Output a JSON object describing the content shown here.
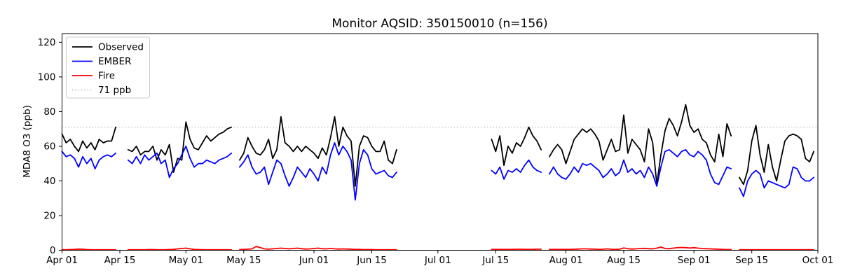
{
  "header": {
    "title": "Monitor AQSID: 350150010 (n=156)"
  },
  "chart_data": {
    "type": "line",
    "title": "Monitor AQSID: 350150010 (n=156)",
    "xlabel": "",
    "ylabel": "MDA8 O3 (ppb)",
    "ylim": [
      0,
      125
    ],
    "x_domain_days": 183,
    "grid": false,
    "legend_position": "upper left",
    "background": "#ffffff",
    "spine_color": "#000000",
    "y_ticks": [
      0,
      20,
      40,
      60,
      80,
      100,
      120
    ],
    "x_ticks": [
      {
        "label": "Apr 01",
        "day": 0
      },
      {
        "label": "Apr 15",
        "day": 14
      },
      {
        "label": "May 01",
        "day": 30
      },
      {
        "label": "May 15",
        "day": 44
      },
      {
        "label": "Jun 01",
        "day": 61
      },
      {
        "label": "Jun 15",
        "day": 75
      },
      {
        "label": "Jul 01",
        "day": 91
      },
      {
        "label": "Jul 15",
        "day": 105
      },
      {
        "label": "Aug 01",
        "day": 122
      },
      {
        "label": "Aug 15",
        "day": 136
      },
      {
        "label": "Sep 01",
        "day": 153
      },
      {
        "label": "Sep 15",
        "day": 167
      },
      {
        "label": "Oct 01",
        "day": 183
      }
    ],
    "threshold": {
      "value": 71,
      "label": "71 ppb",
      "color": "#c8c8c8",
      "style": "dotted"
    },
    "legend": [
      {
        "label": "Observed",
        "color": "#000000",
        "dash": null
      },
      {
        "label": "EMBER",
        "color": "#0000ff",
        "dash": null
      },
      {
        "label": "Fire",
        "color": "#ff0000",
        "dash": null
      },
      {
        "label": "71 ppb",
        "color": "#c8c8c8",
        "dash": "1.5 2.8"
      }
    ],
    "series": [
      {
        "name": "Observed",
        "color": "#000000",
        "values": [
          67,
          62,
          64,
          60,
          57,
          63,
          59,
          62,
          58,
          64,
          62,
          63,
          63,
          71,
          null,
          null,
          58,
          57,
          60,
          55,
          57,
          57,
          60,
          52,
          58,
          55,
          61,
          45,
          53,
          52,
          74,
          64,
          59,
          58,
          62,
          66,
          63,
          65,
          67,
          68,
          70,
          71,
          null,
          52,
          56,
          65,
          60,
          56,
          55,
          58,
          64,
          53,
          58,
          77,
          62,
          60,
          57,
          60,
          57,
          60,
          58,
          56,
          53,
          59,
          55,
          65,
          77,
          60,
          71,
          66,
          63,
          37,
          60,
          66,
          65,
          60,
          57,
          57,
          63,
          52,
          50,
          58,
          null,
          null,
          null,
          null,
          null,
          null,
          null,
          null,
          null,
          null,
          null,
          null,
          null,
          null,
          null,
          null,
          null,
          null,
          null,
          null,
          null,
          null,
          64,
          57,
          66,
          49,
          60,
          56,
          62,
          60,
          65,
          71,
          66,
          63,
          58,
          null,
          54,
          58,
          61,
          58,
          50,
          57,
          64,
          67,
          70,
          68,
          70,
          67,
          63,
          52,
          58,
          64,
          57,
          58,
          78,
          56,
          64,
          61,
          58,
          51,
          70,
          62,
          38,
          55,
          69,
          76,
          72,
          66,
          74,
          84,
          72,
          68,
          70,
          64,
          62,
          55,
          51,
          67,
          54,
          73,
          66,
          null,
          42,
          38,
          46,
          63,
          72,
          55,
          45,
          61,
          48,
          40,
          52,
          63,
          66,
          67,
          66,
          64,
          53,
          51,
          57
        ]
      },
      {
        "name": "EMBER",
        "color": "#0000ff",
        "values": [
          57,
          54,
          55,
          53,
          48,
          54,
          50,
          53,
          47,
          52,
          54,
          55,
          54,
          56,
          null,
          null,
          52,
          50,
          54,
          50,
          55,
          52,
          54,
          56,
          50,
          52,
          42,
          47,
          50,
          55,
          60,
          53,
          48,
          50,
          50,
          52,
          51,
          50,
          52,
          53,
          54,
          56,
          null,
          48,
          51,
          55,
          48,
          44,
          45,
          48,
          38,
          45,
          52,
          50,
          43,
          37,
          42,
          48,
          45,
          42,
          47,
          44,
          40,
          48,
          44,
          55,
          62,
          55,
          60,
          57,
          52,
          29,
          50,
          58,
          55,
          47,
          44,
          45,
          46,
          43,
          42,
          45,
          null,
          null,
          null,
          null,
          null,
          null,
          null,
          null,
          null,
          null,
          null,
          null,
          null,
          null,
          null,
          null,
          null,
          null,
          null,
          null,
          null,
          null,
          46,
          44,
          48,
          41,
          46,
          45,
          47,
          45,
          49,
          52,
          48,
          46,
          45,
          null,
          44,
          48,
          44,
          42,
          41,
          44,
          48,
          45,
          50,
          49,
          50,
          48,
          46,
          42,
          44,
          47,
          43,
          45,
          52,
          45,
          47,
          44,
          46,
          42,
          48,
          44,
          37,
          48,
          57,
          58,
          56,
          54,
          57,
          58,
          55,
          54,
          57,
          55,
          52,
          44,
          39,
          38,
          43,
          48,
          47,
          null,
          36,
          31,
          40,
          44,
          46,
          44,
          36,
          40,
          39,
          38,
          37,
          36,
          38,
          48,
          47,
          42,
          40,
          40,
          42
        ]
      },
      {
        "name": "Fire",
        "color": "#ff0000",
        "values": [
          0.3,
          0.3,
          0.4,
          0.5,
          0.7,
          0.6,
          0.4,
          0.3,
          0.3,
          0.3,
          0.3,
          0.3,
          0.3,
          0.3,
          null,
          null,
          0.3,
          0.3,
          0.3,
          0.3,
          0.3,
          0.4,
          0.4,
          0.3,
          0.3,
          0.3,
          0.4,
          0.5,
          0.8,
          1.0,
          1.2,
          0.8,
          0.5,
          0.4,
          0.3,
          0.3,
          0.3,
          0.3,
          0.3,
          0.3,
          0.3,
          0.3,
          null,
          0.4,
          0.5,
          0.6,
          0.8,
          2.2,
          1.5,
          0.8,
          0.6,
          0.8,
          1.0,
          1.2,
          1.0,
          0.8,
          1.0,
          1.2,
          0.9,
          0.7,
          0.8,
          1.0,
          1.2,
          0.9,
          0.8,
          1.0,
          0.8,
          0.7,
          0.8,
          0.7,
          0.6,
          0.5,
          0.5,
          0.4,
          0.4,
          0.4,
          0.3,
          0.3,
          0.3,
          0.3,
          0.3,
          0.3,
          null,
          null,
          null,
          null,
          null,
          null,
          null,
          null,
          null,
          null,
          null,
          null,
          null,
          null,
          null,
          null,
          null,
          null,
          null,
          null,
          null,
          null,
          0.5,
          0.5,
          0.5,
          0.5,
          0.5,
          0.5,
          0.6,
          0.6,
          0.5,
          0.5,
          0.5,
          0.6,
          0.6,
          null,
          0.5,
          0.5,
          0.5,
          0.5,
          0.5,
          0.5,
          0.6,
          0.7,
          0.8,
          0.8,
          0.7,
          0.6,
          0.5,
          0.6,
          0.8,
          0.6,
          0.5,
          0.6,
          1.3,
          0.9,
          0.7,
          0.8,
          1.0,
          1.1,
          0.9,
          0.8,
          1.2,
          1.8,
          1.0,
          0.9,
          1.2,
          1.5,
          1.6,
          1.5,
          1.3,
          1.5,
          1.2,
          1.0,
          0.9,
          0.8,
          0.7,
          0.6,
          0.5,
          0.4,
          0.4,
          null,
          0.3,
          0.3,
          0.3,
          0.3,
          0.3,
          0.3,
          0.3,
          0.3,
          0.3,
          0.3,
          0.3,
          0.3,
          0.3,
          0.3,
          0.3,
          0.3,
          0.3,
          0.3,
          0.3
        ]
      }
    ]
  }
}
